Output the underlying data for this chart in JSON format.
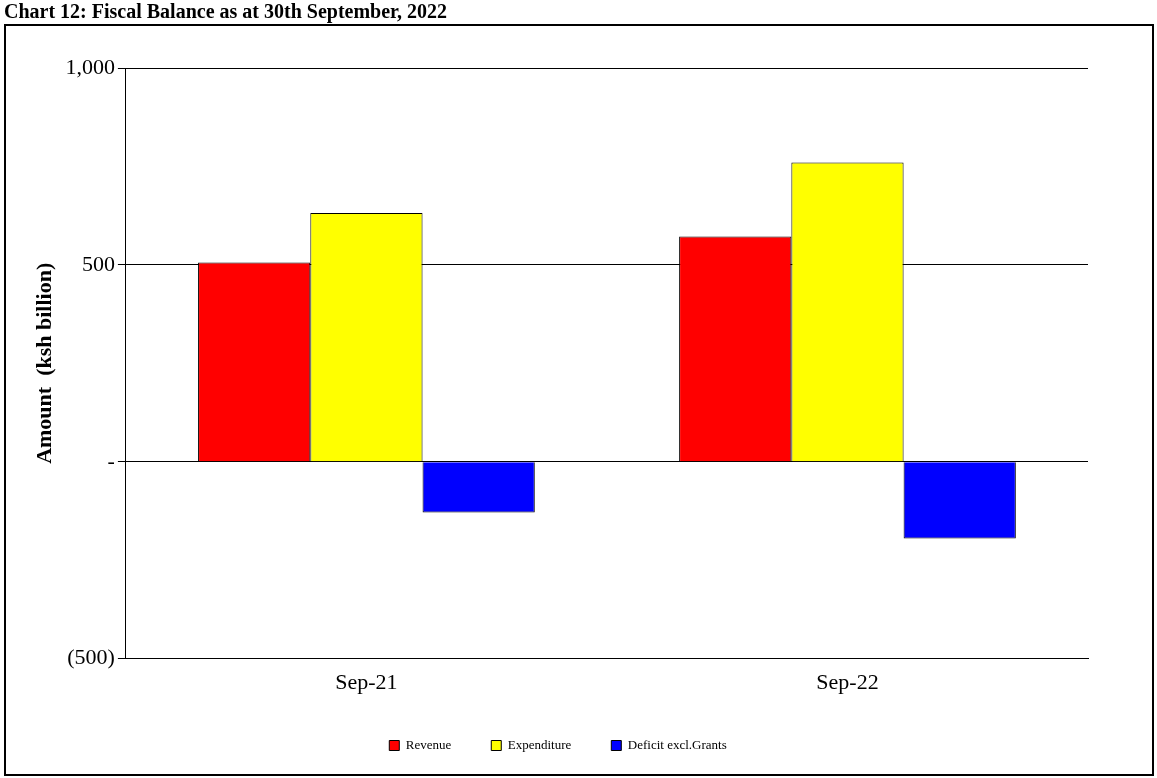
{
  "chart_data": {
    "type": "bar",
    "title": "Chart 12: Fiscal Balance as at 30th September, 2022",
    "ylabel": "Amount  (ksh billion)",
    "categories": [
      "Sep-21",
      "Sep-22"
    ],
    "series": [
      {
        "name": "Revenue",
        "color": "#ff0000",
        "values": [
          506,
          572
        ]
      },
      {
        "name": "Expenditure",
        "color": "#ffff00",
        "values": [
          632,
          760
        ]
      },
      {
        "name": "Deficit excl.Grants",
        "color": "#0000ff",
        "values": [
          -129,
          -195
        ]
      }
    ],
    "ylim": [
      -500,
      1000
    ],
    "yticks": [
      {
        "value": -500,
        "label": "(500)"
      },
      {
        "value": 0,
        "label": "-"
      },
      {
        "value": 500,
        "label": "500"
      },
      {
        "value": 1000,
        "label": "1,000"
      }
    ],
    "grid": "y",
    "legend": "bottom"
  }
}
